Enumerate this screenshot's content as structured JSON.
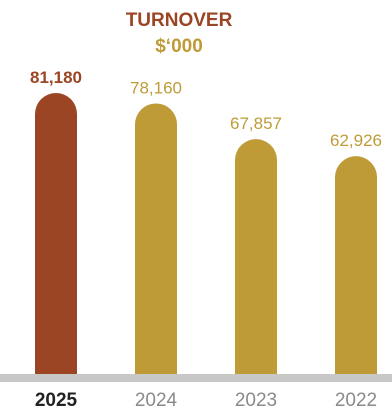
{
  "colors": {
    "highlight": "#9b4524",
    "bar": "#bf9b37",
    "axis": "#c8c8c8",
    "year_highlight": "#222222",
    "year_normal": "#8a8a8a",
    "value_highlight": "#9b4524",
    "value_normal": "#bf9b37"
  },
  "chart_data": {
    "type": "bar",
    "title": "TURNOVER",
    "subtitle": "$‘000",
    "categories": [
      "2025",
      "2024",
      "2023",
      "2022"
    ],
    "values": [
      81180,
      78160,
      67857,
      62926
    ],
    "value_labels": [
      "81,180",
      "78,160",
      "67,857",
      "62,926"
    ],
    "highlight_index": 0,
    "ylim": [
      0,
      88000
    ],
    "grid": false,
    "legend": "none"
  }
}
